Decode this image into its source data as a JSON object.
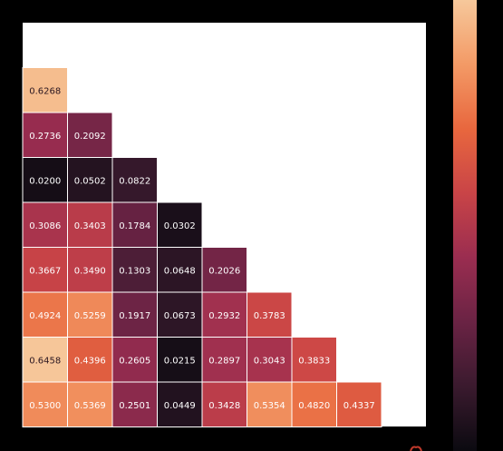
{
  "chart_data": {
    "type": "heatmap",
    "title": "",
    "xlabel": "",
    "ylabel": "",
    "layout": "lower-triangle",
    "value_range": [
      0.0,
      0.65
    ],
    "colormap": [
      "#0b0a10",
      "#3a1a2e",
      "#6a2344",
      "#9a2d50",
      "#c94447",
      "#e8673e",
      "#f39a66",
      "#f6c89b"
    ],
    "rows": [
      [],
      [
        0.6268
      ],
      [
        0.2736,
        0.2092
      ],
      [
        0.02,
        0.0502,
        0.0822
      ],
      [
        0.3086,
        0.3403,
        0.1784,
        0.0302
      ],
      [
        0.3667,
        0.349,
        0.1303,
        0.0648,
        0.2026
      ],
      [
        0.4924,
        0.5259,
        0.1917,
        0.0673,
        0.2932,
        0.3783
      ],
      [
        0.6458,
        0.4396,
        0.2605,
        0.0215,
        0.2897,
        0.3043,
        0.3833
      ],
      [
        0.53,
        0.5369,
        0.2501,
        0.0449,
        0.3428,
        0.5354,
        0.482,
        0.4337
      ]
    ],
    "cell_labels": [
      [],
      [
        "0.6268"
      ],
      [
        "0.2736",
        "0.2092"
      ],
      [
        "0.0200",
        "0.0502",
        "0.0822"
      ],
      [
        "0.3086",
        "0.3403",
        "0.1784",
        "0.0302"
      ],
      [
        "0.3667",
        "0.3490",
        "0.1303",
        "0.0648",
        "0.2026"
      ],
      [
        "0.4924",
        "0.5259",
        "0.1917",
        "0.0673",
        "0.2932",
        "0.3783"
      ],
      [
        "0.6458",
        "0.4396",
        "0.2605",
        "0.0215",
        "0.2897",
        "0.3043",
        "0.3833"
      ],
      [
        "0.5300",
        "0.5369",
        "0.2501",
        "0.0449",
        "0.3428",
        "0.5354",
        "0.4820",
        "0.4337"
      ]
    ]
  }
}
